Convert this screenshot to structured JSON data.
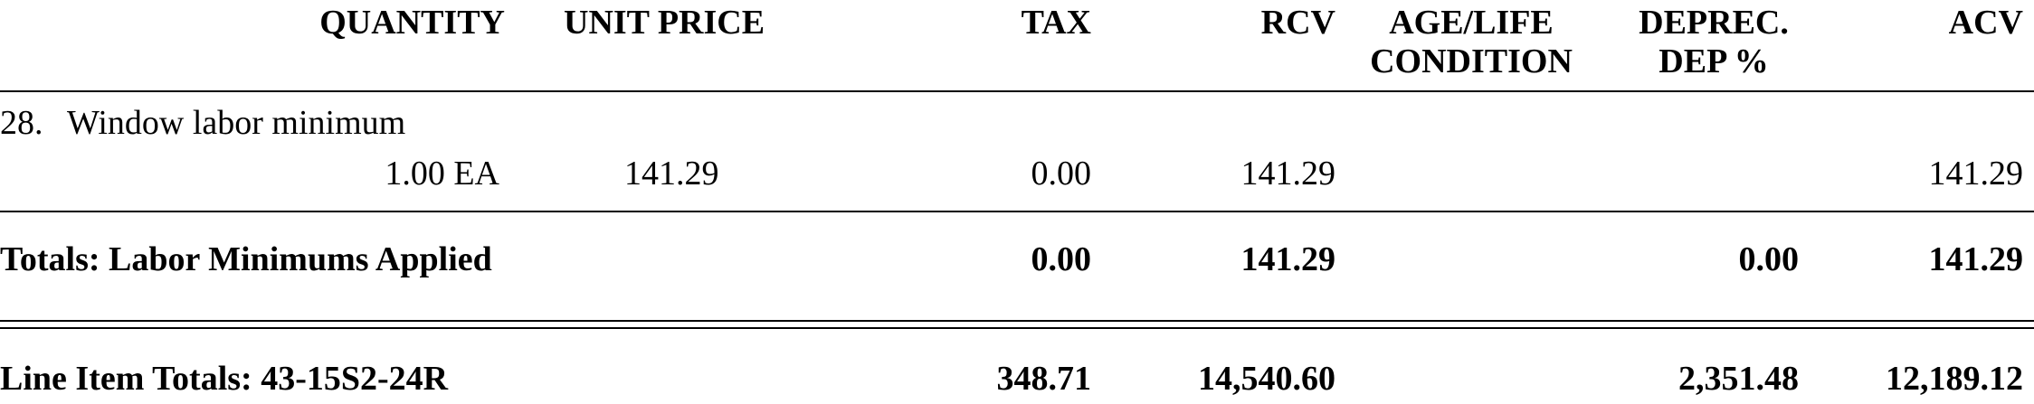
{
  "columns": {
    "quantity": "QUANTITY",
    "unit_price": "UNIT PRICE",
    "tax": "TAX",
    "rcv": "RCV",
    "age_life_line1": "AGE/LIFE",
    "age_life_line2": "CONDITION",
    "deprec_line1": "DEPREC.",
    "deprec_line2": "DEP %",
    "acv": "ACV"
  },
  "line_items": [
    {
      "number": "28.",
      "description": "Window labor minimum",
      "quantity": "1.00 EA",
      "unit_price": "141.29",
      "tax": "0.00",
      "rcv": "141.29",
      "acv": "141.29"
    }
  ],
  "group_totals": {
    "label": "Totals:  Labor Minimums Applied",
    "tax": "0.00",
    "rcv": "141.29",
    "deprec": "0.00",
    "acv": "141.29"
  },
  "line_item_totals": {
    "label": "Line Item Totals:  43-15S2-24R",
    "tax": "348.71",
    "rcv": "14,540.60",
    "deprec": "2,351.48",
    "acv": "12,189.12"
  }
}
